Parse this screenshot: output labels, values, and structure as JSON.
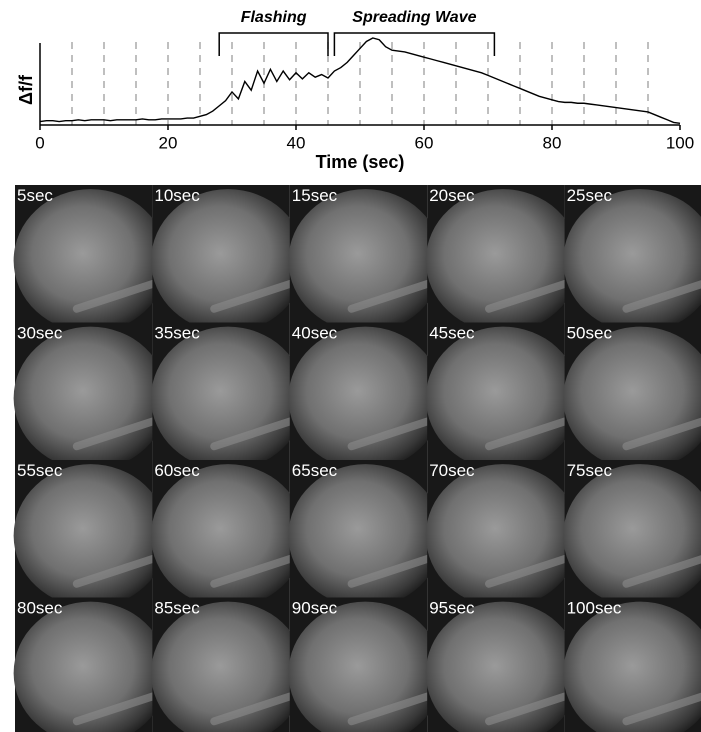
{
  "chart_data": {
    "type": "line",
    "xlabel": "Time (sec)",
    "ylabel": "Δf/f",
    "x": [
      0,
      1,
      2,
      3,
      4,
      5,
      6,
      7,
      8,
      9,
      10,
      11,
      12,
      13,
      14,
      15,
      16,
      17,
      18,
      19,
      20,
      21,
      22,
      23,
      24,
      25,
      26,
      27,
      28,
      29,
      30,
      31,
      32,
      33,
      34,
      35,
      36,
      37,
      38,
      39,
      40,
      41,
      42,
      43,
      44,
      45,
      46,
      47,
      48,
      49,
      50,
      51,
      52,
      53,
      54,
      55,
      56,
      57,
      58,
      59,
      60,
      61,
      62,
      63,
      64,
      65,
      66,
      67,
      68,
      69,
      70,
      71,
      72,
      73,
      74,
      75,
      76,
      77,
      78,
      79,
      80,
      81,
      82,
      83,
      84,
      85,
      86,
      87,
      88,
      89,
      90,
      91,
      92,
      93,
      94,
      95,
      96,
      97,
      98,
      99,
      100
    ],
    "values": [
      0.04,
      0.05,
      0.05,
      0.04,
      0.05,
      0.05,
      0.06,
      0.05,
      0.06,
      0.06,
      0.06,
      0.05,
      0.06,
      0.06,
      0.06,
      0.06,
      0.07,
      0.06,
      0.06,
      0.07,
      0.07,
      0.07,
      0.07,
      0.08,
      0.08,
      0.1,
      0.12,
      0.16,
      0.22,
      0.28,
      0.38,
      0.3,
      0.5,
      0.4,
      0.62,
      0.48,
      0.64,
      0.5,
      0.62,
      0.52,
      0.6,
      0.53,
      0.6,
      0.55,
      0.58,
      0.54,
      0.62,
      0.66,
      0.72,
      0.8,
      0.88,
      0.96,
      1.0,
      0.98,
      0.9,
      0.86,
      0.85,
      0.84,
      0.82,
      0.8,
      0.78,
      0.76,
      0.74,
      0.72,
      0.7,
      0.68,
      0.66,
      0.64,
      0.62,
      0.6,
      0.57,
      0.54,
      0.51,
      0.48,
      0.45,
      0.42,
      0.39,
      0.36,
      0.33,
      0.31,
      0.29,
      0.27,
      0.26,
      0.26,
      0.25,
      0.25,
      0.24,
      0.23,
      0.22,
      0.21,
      0.2,
      0.19,
      0.18,
      0.17,
      0.16,
      0.15,
      0.12,
      0.09,
      0.06,
      0.03,
      0.02
    ],
    "color": "#000000",
    "xlim": [
      0,
      100
    ],
    "xticks": [
      0,
      20,
      40,
      60,
      80,
      100
    ],
    "ylim": [
      0,
      1
    ],
    "vlines": [
      5,
      10,
      15,
      20,
      25,
      30,
      35,
      40,
      45,
      50,
      55,
      60,
      65,
      70,
      75,
      80,
      85,
      90,
      95
    ],
    "annotations": [
      {
        "text": "Flashing",
        "x": [
          28,
          45
        ]
      },
      {
        "text": "Spreading Wave",
        "x": [
          46,
          71
        ]
      }
    ]
  },
  "panels": [
    "5sec",
    "10sec",
    "15sec",
    "20sec",
    "25sec",
    "30sec",
    "35sec",
    "40sec",
    "45sec",
    "50sec",
    "55sec",
    "60sec",
    "65sec",
    "70sec",
    "75sec",
    "80sec",
    "85sec",
    "90sec",
    "95sec",
    "100sec"
  ]
}
